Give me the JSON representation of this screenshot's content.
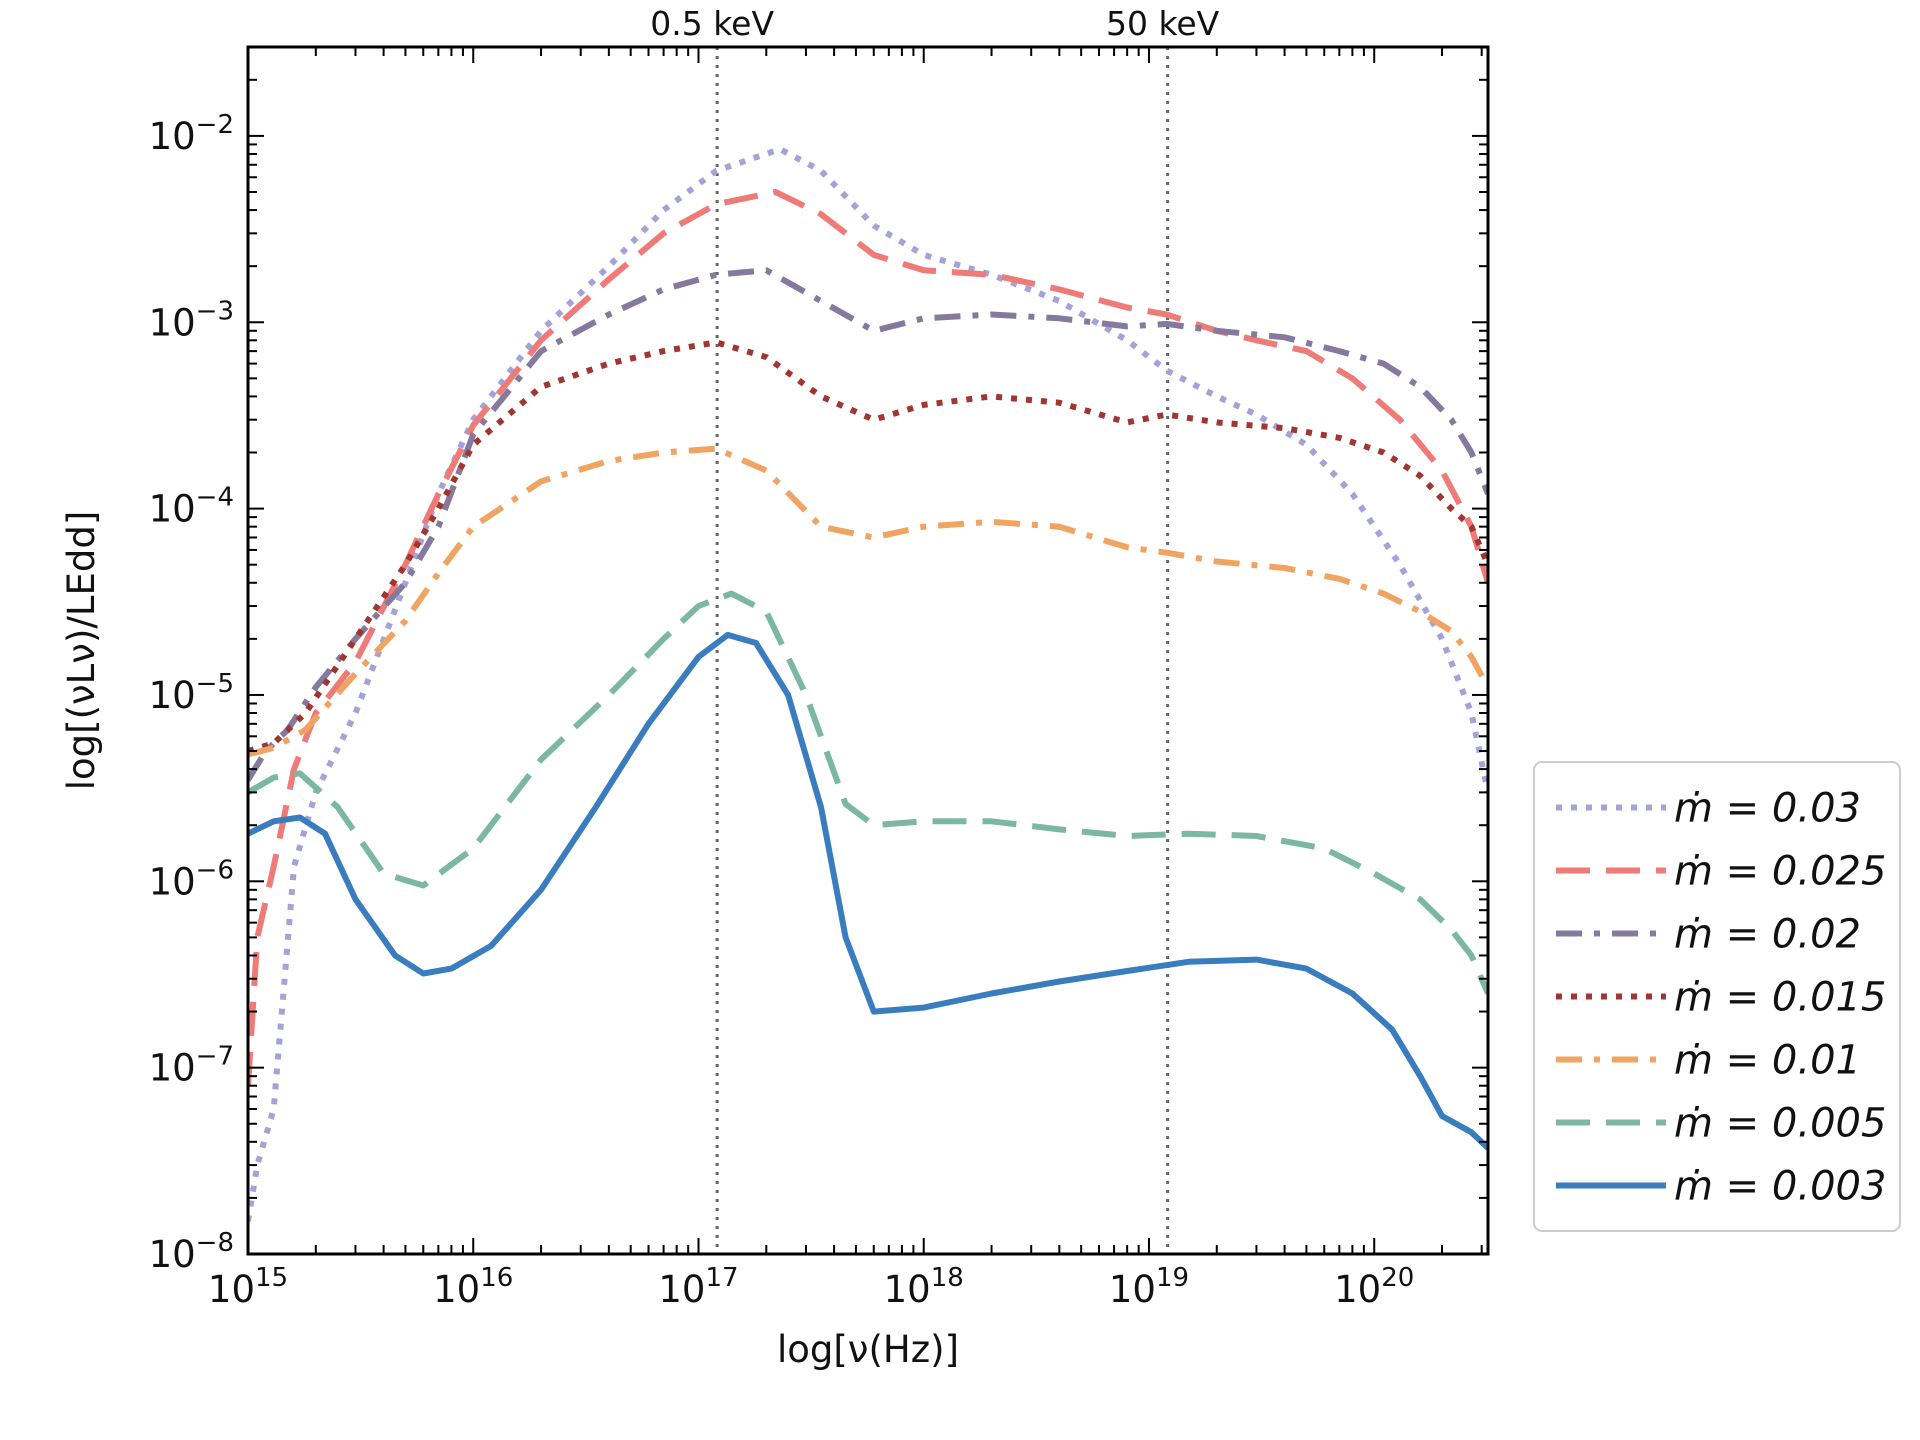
{
  "chart_data": {
    "type": "line",
    "xscale": "log",
    "yscale": "log",
    "xlim": [
      1000000000000000.0,
      3.2e+20
    ],
    "ylim": [
      1e-08,
      0.03
    ],
    "xlabel": "log[ν(Hz)]",
    "ylabel": "log[(νLν)/LEdd]",
    "x_ticks": [
      {
        "value": 1000000000000000.0,
        "label": "10",
        "exp": "15"
      },
      {
        "value": 1e+16,
        "label": "10",
        "exp": "16"
      },
      {
        "value": 1e+17,
        "label": "10",
        "exp": "17"
      },
      {
        "value": 1e+18,
        "label": "10",
        "exp": "18"
      },
      {
        "value": 1e+19,
        "label": "10",
        "exp": "19"
      },
      {
        "value": 1e+20,
        "label": "10",
        "exp": "20"
      }
    ],
    "y_ticks": [
      {
        "value": 0.01,
        "label": "10",
        "exp": "−2"
      },
      {
        "value": 0.001,
        "label": "10",
        "exp": "−3"
      },
      {
        "value": 0.0001,
        "label": "10",
        "exp": "−4"
      },
      {
        "value": 1e-05,
        "label": "10",
        "exp": "−5"
      },
      {
        "value": 1e-06,
        "label": "10",
        "exp": "−6"
      },
      {
        "value": 1e-07,
        "label": "10",
        "exp": "−7"
      },
      {
        "value": 1e-08,
        "label": "10",
        "exp": "−8"
      }
    ],
    "reference_lines": [
      {
        "x": 1.21e+17,
        "label": "0.5 keV"
      },
      {
        "x": 1.21e+19,
        "label": "50 keV"
      }
    ],
    "legend_position": "outside-right-bottom",
    "series": [
      {
        "name": "ṁ = 0.03",
        "color": "#a3a3d9",
        "style": "dotted",
        "x": [
          1000000000000000.0,
          1100000000000000.0,
          1300000000000000.0,
          1600000000000000.0,
          2000000000000000.0,
          3000000000000000.0,
          5000000000000000.0,
          7000000000000000.0,
          1e+16,
          2e+16,
          4e+16,
          7e+16,
          1.2e+17,
          2.3e+17,
          3.5e+17,
          6e+17,
          1e+18,
          2e+18,
          4e+18,
          8e+18,
          1.2e+19,
          2e+19,
          3e+19,
          5e+19,
          8e+19,
          1.3e+20,
          2e+20,
          2.7e+20,
          3.2e+20
        ],
        "y": [
          1.5e-08,
          3e-08,
          6e-08,
          1.2e-06,
          3e-06,
          8e-06,
          4e-05,
          0.00012,
          0.0003,
          0.0009,
          0.002,
          0.004,
          0.0065,
          0.0085,
          0.0065,
          0.0033,
          0.0023,
          0.0018,
          0.0013,
          0.0008,
          0.00055,
          0.0004,
          0.00032,
          0.00022,
          0.00012,
          5e-05,
          2e-05,
          8e-06,
          3e-06
        ]
      },
      {
        "name": "ṁ = 0.025",
        "color": "#ee7b78",
        "style": "dashed",
        "x": [
          1000000000000000.0,
          1100000000000000.0,
          1300000000000000.0,
          1600000000000000.0,
          2000000000000000.0,
          3000000000000000.0,
          5000000000000000.0,
          7000000000000000.0,
          1e+16,
          2e+16,
          4e+16,
          7e+16,
          1.2e+17,
          2.2e+17,
          3.5e+17,
          6e+17,
          1e+18,
          2e+18,
          4e+18,
          8e+18,
          1.2e+19,
          2e+19,
          3e+19,
          5e+19,
          8e+19,
          1.3e+20,
          2e+20,
          2.7e+20,
          3.2e+20
        ],
        "y": [
          8e-08,
          5e-07,
          1.2e-06,
          4e-06,
          8e-06,
          1.5e-05,
          5e-05,
          0.00012,
          0.00028,
          0.0008,
          0.0017,
          0.003,
          0.0043,
          0.005,
          0.0038,
          0.0023,
          0.0019,
          0.0018,
          0.0015,
          0.0012,
          0.0011,
          0.0009,
          0.0008,
          0.0007,
          0.0005,
          0.0003,
          0.00016,
          8e-05,
          4e-05
        ]
      },
      {
        "name": "ṁ = 0.02",
        "color": "#857a9e",
        "style": "dashdot",
        "x": [
          1000000000000000.0,
          1200000000000000.0,
          1500000000000000.0,
          2000000000000000.0,
          3000000000000000.0,
          5000000000000000.0,
          7000000000000000.0,
          1e+16,
          2e+16,
          4e+16,
          7e+16,
          1.2e+17,
          2e+17,
          3.5e+17,
          6e+17,
          1e+18,
          2e+18,
          4e+18,
          8e+18,
          1.2e+19,
          2e+19,
          4e+19,
          7e+19,
          1.1e+20,
          1.6e+20,
          2.2e+20,
          2.7e+20,
          3.2e+20
        ],
        "y": [
          3.5e-06,
          5e-06,
          6.5e-06,
          1.1e-05,
          2e-05,
          4e-05,
          8e-05,
          0.00025,
          0.0007,
          0.0011,
          0.0015,
          0.0018,
          0.0019,
          0.0013,
          0.0009,
          0.00105,
          0.0011,
          0.00105,
          0.00095,
          0.00098,
          0.0009,
          0.00083,
          0.0007,
          0.0006,
          0.00045,
          0.0003,
          0.0002,
          0.00012
        ]
      },
      {
        "name": "ṁ = 0.015",
        "color": "#a0362f",
        "style": "dotted",
        "x": [
          1000000000000000.0,
          1300000000000000.0,
          1800000000000000.0,
          3000000000000000.0,
          5000000000000000.0,
          7000000000000000.0,
          1e+16,
          2e+16,
          4e+16,
          7e+16,
          1.2e+17,
          2e+17,
          3.5e+17,
          6e+17,
          1e+18,
          2e+18,
          4e+18,
          8e+18,
          1.2e+19,
          2e+19,
          4e+19,
          7e+19,
          1.1e+20,
          1.6e+20,
          2.2e+20,
          2.7e+20,
          3.2e+20
        ],
        "y": [
          5e-06,
          5.5e-06,
          8e-06,
          2e-05,
          5e-05,
          0.0001,
          0.00022,
          0.00045,
          0.0006,
          0.0007,
          0.00078,
          0.00065,
          0.0004,
          0.0003,
          0.00036,
          0.0004,
          0.00037,
          0.00029,
          0.00032,
          0.00029,
          0.00027,
          0.00024,
          0.0002,
          0.00015,
          0.0001,
          8e-05,
          5e-05
        ]
      },
      {
        "name": "ṁ = 0.01",
        "color": "#f0a462",
        "style": "dashdot",
        "x": [
          1000000000000000.0,
          1300000000000000.0,
          1800000000000000.0,
          3000000000000000.0,
          5000000000000000.0,
          7000000000000000.0,
          1e+16,
          2e+16,
          4e+16,
          7e+16,
          1.2e+17,
          2e+17,
          3.5e+17,
          6e+17,
          1e+18,
          2e+18,
          4e+18,
          8e+18,
          1.2e+19,
          2e+19,
          4e+19,
          7e+19,
          1.1e+20,
          1.6e+20,
          2.2e+20,
          2.7e+20,
          3.2e+20
        ],
        "y": [
          4.8e-06,
          5.2e-06,
          6.5e-06,
          1.3e-05,
          2.5e-05,
          4.5e-05,
          8e-05,
          0.00014,
          0.00018,
          0.0002,
          0.00021,
          0.00016,
          8e-05,
          7e-05,
          8e-05,
          8.5e-05,
          8e-05,
          6.2e-05,
          5.8e-05,
          5.2e-05,
          4.8e-05,
          4.2e-05,
          3.5e-05,
          2.8e-05,
          2.2e-05,
          1.6e-05,
          1.1e-05
        ]
      },
      {
        "name": "ṁ = 0.005",
        "color": "#7cb7a3",
        "style": "dashed",
        "x": [
          1000000000000000.0,
          1300000000000000.0,
          1700000000000000.0,
          2500000000000000.0,
          4000000000000000.0,
          6000000000000000.0,
          1e+16,
          2e+16,
          4e+16,
          7e+16,
          1e+17,
          1.4e+17,
          2e+17,
          3e+17,
          4.5e+17,
          6e+17,
          1e+18,
          2e+18,
          4e+18,
          8e+18,
          1.5e+19,
          3e+19,
          6e+19,
          1e+20,
          1.6e+20,
          2.2e+20,
          2.7e+20,
          3.2e+20
        ],
        "y": [
          3e-06,
          3.6e-06,
          3.8e-06,
          2.5e-06,
          1.1e-06,
          9.5e-07,
          1.5e-06,
          4.5e-06,
          1e-05,
          2e-05,
          3e-05,
          3.5e-05,
          2.8e-05,
          1e-05,
          2.6e-06,
          2e-06,
          2.1e-06,
          2.1e-06,
          1.9e-06,
          1.75e-06,
          1.8e-06,
          1.75e-06,
          1.5e-06,
          1.1e-06,
          8e-07,
          5.5e-07,
          4e-07,
          2.5e-07
        ]
      },
      {
        "name": "ṁ = 0.003",
        "color": "#3a7dbf",
        "style": "solid",
        "x": [
          1000000000000000.0,
          1300000000000000.0,
          1700000000000000.0,
          2200000000000000.0,
          3000000000000000.0,
          4500000000000000.0,
          6000000000000000.0,
          8000000000000000.0,
          1.2e+16,
          2e+16,
          3.5e+16,
          6e+16,
          1e+17,
          1.35e+17,
          1.8e+17,
          2.5e+17,
          3.5e+17,
          4.5e+17,
          6e+17,
          1e+18,
          2e+18,
          4e+18,
          8e+18,
          1.5e+19,
          3e+19,
          5e+19,
          8e+19,
          1.2e+20,
          1.6e+20,
          2e+20,
          2.7e+20,
          3.2e+20
        ],
        "y": [
          1.8e-06,
          2.1e-06,
          2.2e-06,
          1.8e-06,
          8e-07,
          4e-07,
          3.2e-07,
          3.4e-07,
          4.5e-07,
          9e-07,
          2.5e-06,
          7e-06,
          1.6e-05,
          2.1e-05,
          1.9e-05,
          1e-05,
          2.5e-06,
          5e-07,
          2e-07,
          2.1e-07,
          2.5e-07,
          2.9e-07,
          3.3e-07,
          3.7e-07,
          3.8e-07,
          3.4e-07,
          2.5e-07,
          1.6e-07,
          9e-08,
          5.5e-08,
          4.5e-08,
          3.7e-08
        ]
      }
    ]
  }
}
